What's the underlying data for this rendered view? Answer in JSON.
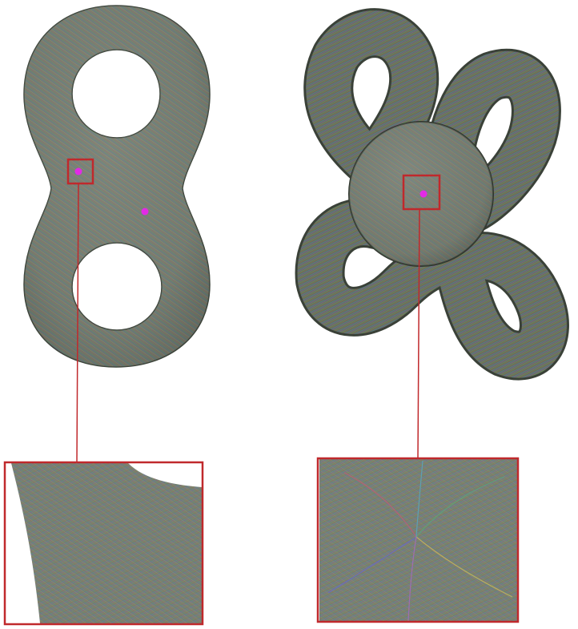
{
  "colors": {
    "background": "#ffffff",
    "surface_base": "#6f7a6c",
    "highlight_box": "#c0292c",
    "singularity_marker": "#e22ae6",
    "streak_palette": [
      "#c25a78",
      "#5aa878",
      "#6a68c8",
      "#c8b85a",
      "#58a8c0",
      "#a86ac0",
      "#7fbf5f",
      "#d07a4f"
    ]
  },
  "figure": {
    "panels": [
      {
        "name": "double-torus-model",
        "shape": "genus-two-surface",
        "texture": "line-integral-convolution-field",
        "singularity_markers": 2,
        "highlight_boxes": 1
      },
      {
        "name": "knotted-tube-model",
        "shape": "knotted-tube-with-central-sphere",
        "texture": "line-integral-convolution-field",
        "singularity_markers": 1,
        "highlight_boxes": 1
      }
    ],
    "insets": [
      {
        "name": "zoom-inset-left",
        "source": "double-torus-model",
        "pattern": "saddle-flow"
      },
      {
        "name": "zoom-inset-right",
        "source": "knotted-tube-model",
        "pattern": "star-shaped-singularity"
      }
    ]
  }
}
